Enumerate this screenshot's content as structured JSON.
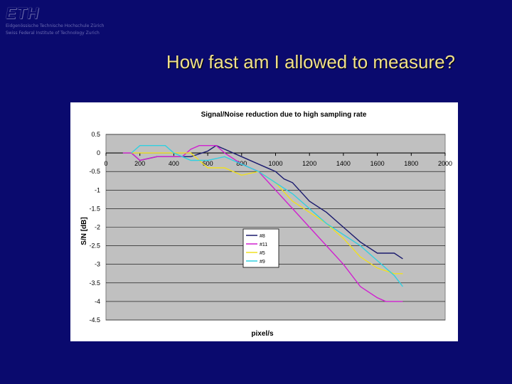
{
  "logo": {
    "text": "ETH"
  },
  "institute": {
    "line1": "Eidgenössische Technische Hochschule Zürich",
    "line2": "Swiss Federal Institute of Technology Zurich"
  },
  "slide": {
    "title": "How fast am I allowed to measure?"
  },
  "colors": {
    "background": "#0a0a6e",
    "plot_area": "#c0c0c0",
    "title": "#f0e08a",
    "series": [
      "#1a1a6e",
      "#d020d0",
      "#f0e020",
      "#30d0e0"
    ]
  },
  "chart_data": {
    "type": "line",
    "title": "Signal/Noise reduction due to high sampling rate",
    "xlabel": "pixel/s",
    "ylabel": "S/N [dB]",
    "xlim": [
      0,
      2000
    ],
    "ylim": [
      -4.5,
      0.5
    ],
    "xticks": [
      "0",
      "200",
      "400",
      "600",
      "800",
      "1000",
      "1200",
      "1400",
      "1600",
      "1800",
      "2000"
    ],
    "yticks": [
      "0.5",
      "0",
      "-0.5",
      "-1",
      "-1.5",
      "-2",
      "-2.5",
      "-3",
      "-3.5",
      "-4",
      "-4.5"
    ],
    "grid": true,
    "legend": "center-right",
    "series": [
      {
        "name": "#8",
        "color": "#1a1a6e",
        "x": [
          150,
          200,
          300,
          500,
          600,
          650,
          700,
          800,
          900,
          1000,
          1050,
          1100,
          1200,
          1300,
          1400,
          1500,
          1600,
          1700,
          1750
        ],
        "y": [
          0,
          -0.2,
          -0.1,
          -0.1,
          0.05,
          0.2,
          0.1,
          -0.1,
          -0.3,
          -0.5,
          -0.7,
          -0.8,
          -1.3,
          -1.6,
          -2.0,
          -2.4,
          -2.7,
          -2.7,
          -2.85
        ]
      },
      {
        "name": "#11",
        "color": "#d020d0",
        "x": [
          100,
          150,
          200,
          300,
          450,
          500,
          550,
          650,
          700,
          800,
          900,
          1000,
          1100,
          1200,
          1300,
          1400,
          1500,
          1600,
          1650,
          1750
        ],
        "y": [
          0,
          0,
          -0.2,
          -0.1,
          -0.1,
          0.1,
          0.2,
          0.2,
          0,
          -0.3,
          -0.5,
          -1.0,
          -1.5,
          -2.0,
          -2.5,
          -3.0,
          -3.6,
          -3.9,
          -4.0,
          -4.0
        ]
      },
      {
        "name": "#5",
        "color": "#f0e020",
        "x": [
          150,
          200,
          300,
          500,
          600,
          700,
          800,
          900,
          1000,
          1100,
          1200,
          1300,
          1400,
          1500,
          1600,
          1700,
          1750
        ],
        "y": [
          0,
          0,
          0,
          0,
          -0.4,
          -0.4,
          -0.6,
          -0.5,
          -0.8,
          -1.3,
          -1.6,
          -1.9,
          -2.3,
          -2.8,
          -3.1,
          -3.25,
          -3.25
        ]
      },
      {
        "name": "#9",
        "color": "#30d0e0",
        "x": [
          150,
          200,
          250,
          350,
          400,
          450,
          500,
          600,
          700,
          800,
          900,
          1000,
          1100,
          1200,
          1300,
          1400,
          1500,
          1600,
          1700,
          1750
        ],
        "y": [
          0,
          0.2,
          0.2,
          0.2,
          0,
          -0.1,
          -0.2,
          -0.2,
          -0.1,
          -0.3,
          -0.5,
          -0.8,
          -1.1,
          -1.5,
          -1.9,
          -2.2,
          -2.5,
          -2.9,
          -3.3,
          -3.6
        ]
      }
    ]
  }
}
